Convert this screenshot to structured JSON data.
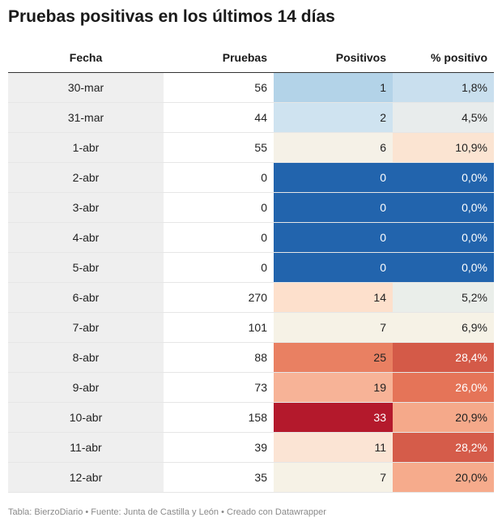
{
  "title": "Pruebas positivas en los últimos 14 días",
  "footer": "Tabla: BierzoDiario • Fuente: Junta de Castilla y León • Creado con Datawrapper",
  "chart_data": {
    "type": "table",
    "columns": [
      "Fecha",
      "Pruebas",
      "Positivos",
      "% positivo"
    ],
    "rows": [
      {
        "fecha": "30-mar",
        "pruebas": "56",
        "positivos": "1",
        "pct": "1,8%",
        "pos_bg": "#b3d3e8",
        "pct_bg": "#c9dfee"
      },
      {
        "fecha": "31-mar",
        "pruebas": "44",
        "positivos": "2",
        "pct": "4,5%",
        "pos_bg": "#cfe3f0",
        "pct_bg": "#e8ecec"
      },
      {
        "fecha": "1-abr",
        "pruebas": "55",
        "positivos": "6",
        "pct": "10,9%",
        "pos_bg": "#f5f1e7",
        "pct_bg": "#fbe4d2"
      },
      {
        "fecha": "2-abr",
        "pruebas": "0",
        "positivos": "0",
        "pct": "0,0%",
        "pos_bg": "#2264ad",
        "pct_bg": "#2264ad"
      },
      {
        "fecha": "3-abr",
        "pruebas": "0",
        "positivos": "0",
        "pct": "0,0%",
        "pos_bg": "#2264ad",
        "pct_bg": "#2264ad"
      },
      {
        "fecha": "4-abr",
        "pruebas": "0",
        "positivos": "0",
        "pct": "0,0%",
        "pos_bg": "#2264ad",
        "pct_bg": "#2264ad"
      },
      {
        "fecha": "5-abr",
        "pruebas": "0",
        "positivos": "0",
        "pct": "0,0%",
        "pos_bg": "#2264ad",
        "pct_bg": "#2264ad"
      },
      {
        "fecha": "6-abr",
        "pruebas": "270",
        "positivos": "14",
        "pct": "5,2%",
        "pos_bg": "#fde0cc",
        "pct_bg": "#eaeeea"
      },
      {
        "fecha": "7-abr",
        "pruebas": "101",
        "positivos": "7",
        "pct": "6,9%",
        "pos_bg": "#f6f2e6",
        "pct_bg": "#f6f2e6"
      },
      {
        "fecha": "8-abr",
        "pruebas": "88",
        "positivos": "25",
        "pct": "28,4%",
        "pos_bg": "#e98062",
        "pct_bg": "#d45a48"
      },
      {
        "fecha": "9-abr",
        "pruebas": "73",
        "positivos": "19",
        "pct": "26,0%",
        "pos_bg": "#f7b397",
        "pct_bg": "#e57458"
      },
      {
        "fecha": "10-abr",
        "pruebas": "158",
        "positivos": "33",
        "pct": "20,9%",
        "pos_bg": "#b4192c",
        "pct_bg": "#f5a98a"
      },
      {
        "fecha": "11-abr",
        "pruebas": "39",
        "positivos": "11",
        "pct": "28,2%",
        "pos_bg": "#fbe4d4",
        "pct_bg": "#d55c4a"
      },
      {
        "fecha": "12-abr",
        "pruebas": "35",
        "positivos": "7",
        "pct": "20,0%",
        "pos_bg": "#f6f2e6",
        "pct_bg": "#f6ab8c"
      }
    ]
  }
}
